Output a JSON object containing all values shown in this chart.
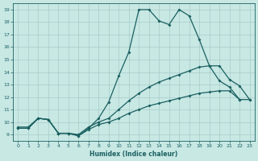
{
  "xlabel": "Humidex (Indice chaleur)",
  "bg_color": "#c8e8e4",
  "line_color": "#1a6060",
  "grid_color": "#a8ccc8",
  "xlim": [
    -0.5,
    23.5
  ],
  "ylim": [
    8.5,
    19.5
  ],
  "xticks": [
    0,
    1,
    2,
    3,
    4,
    5,
    6,
    7,
    8,
    9,
    10,
    11,
    12,
    13,
    14,
    15,
    16,
    17,
    18,
    19,
    20,
    21,
    22,
    23
  ],
  "yticks": [
    9,
    10,
    11,
    12,
    13,
    14,
    15,
    16,
    17,
    18,
    19
  ],
  "curve_top_x": [
    0,
    1,
    2,
    3,
    4,
    5,
    6,
    7,
    8,
    9,
    10,
    11,
    12,
    13,
    14,
    15,
    16,
    17,
    18,
    19,
    20,
    21,
    22
  ],
  "curve_top_y": [
    9.5,
    9.5,
    10.3,
    10.2,
    9.1,
    9.1,
    8.9,
    9.5,
    10.3,
    11.6,
    13.7,
    15.6,
    19.0,
    19.0,
    18.1,
    17.8,
    19.0,
    18.5,
    16.6,
    14.5,
    13.3,
    12.8,
    11.8
  ],
  "curve_mid_x": [
    0,
    1,
    2,
    3,
    4,
    5,
    6,
    7,
    8,
    9,
    10,
    11,
    12,
    13,
    14,
    15,
    16,
    17,
    18,
    19,
    20,
    21,
    22,
    23
  ],
  "curve_mid_y": [
    9.6,
    9.6,
    10.3,
    10.2,
    9.1,
    9.1,
    9.0,
    9.6,
    10.0,
    10.3,
    11.0,
    11.7,
    12.3,
    12.8,
    13.2,
    13.5,
    13.8,
    14.1,
    14.4,
    14.5,
    14.5,
    13.4,
    12.9,
    11.8
  ],
  "curve_low_x": [
    0,
    1,
    2,
    3,
    4,
    5,
    6,
    7,
    8,
    9,
    10,
    11,
    12,
    13,
    14,
    15,
    16,
    17,
    18,
    19,
    20,
    21,
    22,
    23
  ],
  "curve_low_y": [
    9.5,
    9.5,
    10.3,
    10.2,
    9.1,
    9.1,
    8.9,
    9.4,
    9.8,
    10.0,
    10.3,
    10.7,
    11.0,
    11.3,
    11.5,
    11.7,
    11.9,
    12.1,
    12.3,
    12.4,
    12.5,
    12.5,
    11.8,
    11.8
  ]
}
